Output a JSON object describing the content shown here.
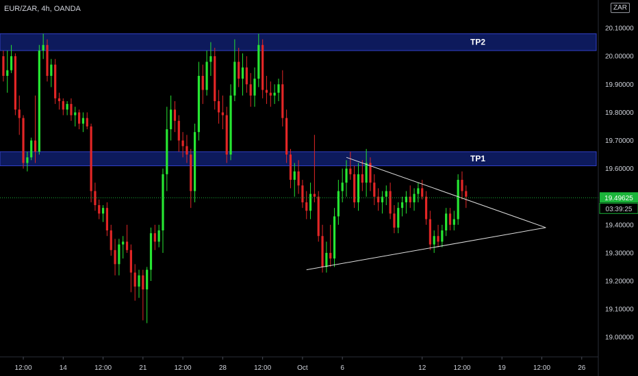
{
  "header": {
    "symbol_label": "EUR/ZAR, 4h, OANDA",
    "currency_button": "ZAR"
  },
  "chart_data": {
    "type": "candlestick",
    "title": "EUR/ZAR, 4h, OANDA",
    "xlabel": "",
    "ylabel": "",
    "ylim": [
      18.93,
      20.2
    ],
    "y_ticks": [
      19.0,
      19.1,
      19.2,
      19.3,
      19.4,
      19.5,
      19.6,
      19.7,
      19.8,
      19.9,
      20.0,
      20.1
    ],
    "y_tick_labels": [
      "19.00000",
      "19.10000",
      "19.20000",
      "19.30000",
      "19.40000",
      "19.50000",
      "19.60000",
      "19.70000",
      "19.80000",
      "19.90000",
      "20.00000",
      "20.10000"
    ],
    "x_ticks": [
      {
        "label": "12:00",
        "bar": 5
      },
      {
        "label": "14",
        "bar": 15
      },
      {
        "label": "12:00",
        "bar": 25
      },
      {
        "label": "21",
        "bar": 35
      },
      {
        "label": "12:00",
        "bar": 45
      },
      {
        "label": "28",
        "bar": 55
      },
      {
        "label": "12:00",
        "bar": 65
      },
      {
        "label": "Oct",
        "bar": 75
      },
      {
        "label": "6",
        "bar": 85
      },
      {
        "label": "12",
        "bar": 105
      },
      {
        "label": "12:00",
        "bar": 115
      },
      {
        "label": "19",
        "bar": 125
      },
      {
        "label": "12:00",
        "bar": 135
      },
      {
        "label": "26",
        "bar": 145
      }
    ],
    "bar_count_axis": 150,
    "candles": [
      [
        20.0,
        20.02,
        19.91,
        19.93
      ],
      [
        19.93,
        20.02,
        19.87,
        19.95
      ],
      [
        19.95,
        20.04,
        19.94,
        20.0
      ],
      [
        20.0,
        20.01,
        19.79,
        19.81
      ],
      [
        19.81,
        19.86,
        19.72,
        19.78
      ],
      [
        19.78,
        19.79,
        19.6,
        19.62
      ],
      [
        19.62,
        19.66,
        19.59,
        19.64
      ],
      [
        19.64,
        19.71,
        19.63,
        19.7
      ],
      [
        19.7,
        19.86,
        19.62,
        19.66
      ],
      [
        19.66,
        20.04,
        19.65,
        20.02
      ],
      [
        20.02,
        20.08,
        19.99,
        20.04
      ],
      [
        20.04,
        20.06,
        19.91,
        19.93
      ],
      [
        19.93,
        19.99,
        19.89,
        19.97
      ],
      [
        19.97,
        19.99,
        19.83,
        19.85
      ],
      [
        19.85,
        19.87,
        19.81,
        19.84
      ],
      [
        19.84,
        19.85,
        19.79,
        19.81
      ],
      [
        19.81,
        19.84,
        19.79,
        19.83
      ],
      [
        19.83,
        19.85,
        19.77,
        19.79
      ],
      [
        19.79,
        19.82,
        19.75,
        19.8
      ],
      [
        19.8,
        19.81,
        19.74,
        19.76
      ],
      [
        19.76,
        19.8,
        19.73,
        19.78
      ],
      [
        19.78,
        19.8,
        19.74,
        19.75
      ],
      [
        19.75,
        19.76,
        19.48,
        19.52
      ],
      [
        19.52,
        19.55,
        19.45,
        19.47
      ],
      [
        19.47,
        19.49,
        19.42,
        19.44
      ],
      [
        19.44,
        19.47,
        19.41,
        19.46
      ],
      [
        19.46,
        19.48,
        19.36,
        19.38
      ],
      [
        19.38,
        19.4,
        19.29,
        19.31
      ],
      [
        19.31,
        19.35,
        19.22,
        19.26
      ],
      [
        19.26,
        19.35,
        19.22,
        19.33
      ],
      [
        19.33,
        19.36,
        19.28,
        19.34
      ],
      [
        19.34,
        19.4,
        19.3,
        19.31
      ],
      [
        19.31,
        19.33,
        19.16,
        19.23
      ],
      [
        19.23,
        19.26,
        19.13,
        19.18
      ],
      [
        19.18,
        19.24,
        19.14,
        19.22
      ],
      [
        19.22,
        19.24,
        19.06,
        19.17
      ],
      [
        19.17,
        19.25,
        19.05,
        19.24
      ],
      [
        19.24,
        19.39,
        19.2,
        19.37
      ],
      [
        19.37,
        19.4,
        19.31,
        19.34
      ],
      [
        19.34,
        19.4,
        19.32,
        19.38
      ],
      [
        19.38,
        19.6,
        19.3,
        19.58
      ],
      [
        19.58,
        19.82,
        19.52,
        19.74
      ],
      [
        19.74,
        19.86,
        19.7,
        19.81
      ],
      [
        19.81,
        19.84,
        19.73,
        19.77
      ],
      [
        19.77,
        19.79,
        19.66,
        19.7
      ],
      [
        19.7,
        19.73,
        19.64,
        19.68
      ],
      [
        19.68,
        19.72,
        19.62,
        19.65
      ],
      [
        19.65,
        19.67,
        19.46,
        19.52
      ],
      [
        19.52,
        19.76,
        19.48,
        19.73
      ],
      [
        19.73,
        19.98,
        19.7,
        19.93
      ],
      [
        19.93,
        19.97,
        19.83,
        19.88
      ],
      [
        19.88,
        20.02,
        19.86,
        19.98
      ],
      [
        19.98,
        20.05,
        19.93,
        20.0
      ],
      [
        20.0,
        20.03,
        19.81,
        19.84
      ],
      [
        19.84,
        19.88,
        19.76,
        19.8
      ],
      [
        19.8,
        19.86,
        19.74,
        19.79
      ],
      [
        19.79,
        19.82,
        19.62,
        19.65
      ],
      [
        19.65,
        19.9,
        19.63,
        19.86
      ],
      [
        19.86,
        20.06,
        19.84,
        19.98
      ],
      [
        19.98,
        20.03,
        19.89,
        19.92
      ],
      [
        19.92,
        20.01,
        19.86,
        19.96
      ],
      [
        19.96,
        20.0,
        19.87,
        19.9
      ],
      [
        19.9,
        19.94,
        19.82,
        19.86
      ],
      [
        19.86,
        19.96,
        19.82,
        19.92
      ],
      [
        19.92,
        20.08,
        19.89,
        20.04
      ],
      [
        20.04,
        20.06,
        19.85,
        19.88
      ],
      [
        19.88,
        19.93,
        19.83,
        19.87
      ],
      [
        19.87,
        19.91,
        19.82,
        19.86
      ],
      [
        19.86,
        19.9,
        19.83,
        19.87
      ],
      [
        19.87,
        19.92,
        19.84,
        19.9
      ],
      [
        19.9,
        19.95,
        19.75,
        19.78
      ],
      [
        19.78,
        19.81,
        19.62,
        19.65
      ],
      [
        19.65,
        19.67,
        19.53,
        19.56
      ],
      [
        19.56,
        19.62,
        19.5,
        19.59
      ],
      [
        19.59,
        19.63,
        19.51,
        19.54
      ],
      [
        19.54,
        19.56,
        19.46,
        19.48
      ],
      [
        19.48,
        19.52,
        19.42,
        19.45
      ],
      [
        19.45,
        19.55,
        19.42,
        19.51
      ],
      [
        19.51,
        19.72,
        19.48,
        19.5
      ],
      [
        19.5,
        19.52,
        19.34,
        19.36
      ],
      [
        19.36,
        19.4,
        19.23,
        19.25
      ],
      [
        19.25,
        19.34,
        19.23,
        19.3
      ],
      [
        19.3,
        19.4,
        19.25,
        19.28
      ],
      [
        19.28,
        19.46,
        19.25,
        19.43
      ],
      [
        19.43,
        19.56,
        19.4,
        19.52
      ],
      [
        19.52,
        19.6,
        19.48,
        19.55
      ],
      [
        19.55,
        19.63,
        19.5,
        19.6
      ],
      [
        19.6,
        19.66,
        19.56,
        19.58
      ],
      [
        19.58,
        19.61,
        19.46,
        19.48
      ],
      [
        19.48,
        19.62,
        19.45,
        19.58
      ],
      [
        19.58,
        19.63,
        19.52,
        19.55
      ],
      [
        19.55,
        19.67,
        19.5,
        19.62
      ],
      [
        19.62,
        19.64,
        19.52,
        19.55
      ],
      [
        19.55,
        19.58,
        19.47,
        19.5
      ],
      [
        19.5,
        19.53,
        19.45,
        19.48
      ],
      [
        19.48,
        19.52,
        19.44,
        19.5
      ],
      [
        19.5,
        19.54,
        19.47,
        19.52
      ],
      [
        19.52,
        19.55,
        19.42,
        19.44
      ],
      [
        19.44,
        19.47,
        19.37,
        19.39
      ],
      [
        19.39,
        19.48,
        19.37,
        19.46
      ],
      [
        19.46,
        19.5,
        19.43,
        19.48
      ],
      [
        19.48,
        19.52,
        19.44,
        19.5
      ],
      [
        19.5,
        19.54,
        19.46,
        19.48
      ],
      [
        19.48,
        19.53,
        19.45,
        19.51
      ],
      [
        19.51,
        19.55,
        19.48,
        19.53
      ],
      [
        19.53,
        19.56,
        19.49,
        19.5
      ],
      [
        19.5,
        19.52,
        19.4,
        19.42
      ],
      [
        19.42,
        19.45,
        19.31,
        19.33
      ],
      [
        19.33,
        19.38,
        19.3,
        19.36
      ],
      [
        19.36,
        19.4,
        19.32,
        19.34
      ],
      [
        19.34,
        19.4,
        19.32,
        19.38
      ],
      [
        19.38,
        19.46,
        19.36,
        19.44
      ],
      [
        19.44,
        19.46,
        19.38,
        19.4
      ],
      [
        19.4,
        19.45,
        19.38,
        19.42
      ],
      [
        19.42,
        19.58,
        19.4,
        19.56
      ],
      [
        19.56,
        19.59,
        19.49,
        19.52
      ],
      [
        19.52,
        19.54,
        19.46,
        19.5
      ]
    ],
    "zones": [
      {
        "label": "TP2",
        "y_low": 20.02,
        "y_high": 20.08
      },
      {
        "label": "TP1",
        "y_low": 19.61,
        "y_high": 19.66
      }
    ],
    "trend_lines": [
      {
        "from": [
          76,
          19.24
        ],
        "to": [
          136,
          19.39
        ]
      },
      {
        "from": [
          86,
          19.64
        ],
        "to": [
          136,
          19.39
        ]
      }
    ],
    "last_price": 19.49625,
    "last_price_label": "19.49625",
    "countdown_label": "03:39:25",
    "colors": {
      "up": "#26e632",
      "down": "#e32626",
      "zone_fill": "#0d1a5c",
      "zone_border": "#3340c8",
      "price_line": "#1bb53a",
      "trend_line": "#e0e0e0",
      "axis_border": "#2a2e39"
    }
  }
}
